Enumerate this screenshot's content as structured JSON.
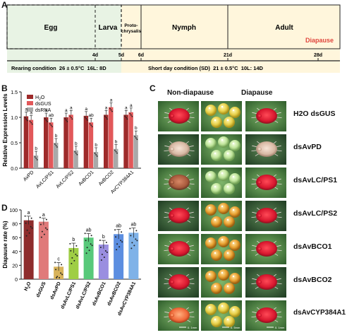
{
  "panel_labels": {
    "a": "A",
    "b": "B",
    "c": "C",
    "d": "D"
  },
  "timeline": {
    "stages": [
      "Egg",
      "Larva",
      "Proto-\nchrysalis",
      "Nymph",
      "Adult"
    ],
    "diapause_label": "Diapause",
    "day_ticks": [
      "4d",
      "5d",
      "6d",
      "21d",
      "28d"
    ],
    "rearing_condition": "Rearing condition  26 ± 0.5°C  16L: 8D",
    "short_day_condition": "Short day condition (SD)  21 ± 0.5°C  10L: 14D",
    "colors": {
      "left_bg": "#e8f3e4",
      "right_bg": "#fff6dc",
      "diapause": "#e0463d"
    }
  },
  "panel_c": {
    "headers": {
      "non_diapause": "Non-diapause",
      "diapause": "Diapause"
    },
    "rows": [
      "H2O dsGUS",
      "dsAvPD",
      "dsAvLC/PS1",
      "dsAvLC/PS2",
      "dsAvBCO1",
      "dsAvBCO2",
      "dsAvCYP384A1"
    ],
    "scale_labels": [
      "0. 1mm",
      "0. 5mm",
      "0. 1mm"
    ]
  },
  "chart_data": [
    {
      "type": "bar",
      "ylabel": "Relative Expression Levels",
      "ylim": [
        0,
        1.5
      ],
      "yticks": [
        "0.0",
        "0.5",
        "1.0",
        "1.5"
      ],
      "categories": [
        "AvPD",
        "AvLC/PS1",
        "AvLC/PS2",
        "AvBCO1",
        "AvBCO2",
        "AvCYP384A1"
      ],
      "series": [
        {
          "name": "H2O",
          "color": "#9e2a2a",
          "values": [
            1.02,
            1.0,
            1.0,
            1.03,
            1.05,
            1.05
          ]
        },
        {
          "name": "dsGUS",
          "color": "#e2585a",
          "values": [
            0.95,
            0.9,
            1.05,
            0.9,
            1.2,
            1.1
          ]
        },
        {
          "name": "dsRNA",
          "color": "#a9a9a9",
          "values": [
            0.25,
            0.5,
            0.35,
            0.32,
            0.38,
            0.65
          ]
        }
      ],
      "letters": [
        [
          "a",
          "a",
          "b"
        ],
        [
          "a",
          "ab",
          "b"
        ],
        [
          "a",
          "a",
          "b"
        ],
        [
          "a",
          "ab",
          "b"
        ],
        [
          "a",
          "a",
          "b"
        ],
        [
          "a",
          "a",
          "b"
        ]
      ],
      "legend": "top-left"
    },
    {
      "type": "bar",
      "ylabel": "Diapause rate (%)",
      "ylim": [
        0,
        100
      ],
      "yticks": [
        "0",
        "20",
        "40",
        "60",
        "80",
        "100"
      ],
      "categories": [
        "H2O",
        "dsGUS",
        "dsAvPD",
        "dsAvLC/PS1",
        "dsAvLC/PS2",
        "dsAvBCO1",
        "dsAvBCO2",
        "dsAvCYP384A1"
      ],
      "values": [
        85,
        83,
        18,
        45,
        60,
        50,
        65,
        67
      ],
      "errors": [
        6,
        5,
        6,
        7,
        6,
        6,
        7,
        7
      ],
      "letters": [
        "a",
        "a",
        "c",
        "b",
        "ab",
        "b",
        "ab",
        "ab"
      ],
      "colors": [
        "#8e2c2c",
        "#e07a7a",
        "#d8b35a",
        "#9fce45",
        "#58c97a",
        "#9a8ee0",
        "#5c8ee0",
        "#7fb2e8"
      ]
    }
  ]
}
